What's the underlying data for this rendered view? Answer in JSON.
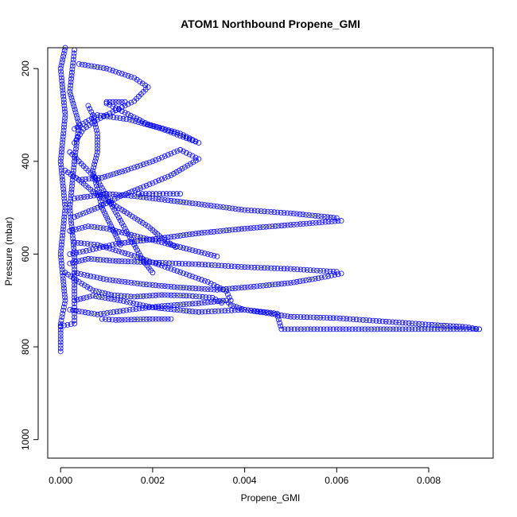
{
  "chart_data": {
    "type": "scatter",
    "title": "ATOM1 Northbound Propene_GMI",
    "xlabel": "Propene_GMI",
    "ylabel": "Pressure (mbar)",
    "xlim": [
      -0.00028,
      0.0094
    ],
    "ylim": [
      1040,
      155
    ],
    "y_reversed": true,
    "x_ticks": [
      {
        "value": 0.0,
        "label": "0.000"
      },
      {
        "value": 0.002,
        "label": "0.002"
      },
      {
        "value": 0.004,
        "label": "0.004"
      },
      {
        "value": 0.006,
        "label": "0.006"
      },
      {
        "value": 0.008,
        "label": "0.008"
      }
    ],
    "y_ticks": [
      {
        "value": 200,
        "label": "200"
      },
      {
        "value": 400,
        "label": "400"
      },
      {
        "value": 600,
        "label": "600"
      },
      {
        "value": 800,
        "label": "800"
      },
      {
        "value": 1000,
        "label": "1000"
      }
    ],
    "marker": "open-circle",
    "color": "#0000ff",
    "connected": true,
    "series": [
      {
        "points": [
          [
            0.0,
            810
          ],
          [
            0.0,
            750
          ],
          [
            0.0001,
            700
          ],
          [
            0.0,
            600
          ],
          [
            0.0001,
            500
          ],
          [
            0.0,
            400
          ],
          [
            0.0001,
            300
          ],
          [
            0.0,
            200
          ],
          [
            0.0001,
            155
          ]
        ]
      },
      {
        "points": [
          [
            0.0003,
            160
          ],
          [
            0.0002,
            250
          ],
          [
            0.0004,
            320
          ],
          [
            0.0003,
            400
          ],
          [
            0.0002,
            500
          ],
          [
            0.0003,
            600
          ],
          [
            0.0003,
            700
          ],
          [
            0.0003,
            750
          ],
          [
            0.0,
            755
          ]
        ]
      },
      {
        "points": [
          [
            0.0009,
            740
          ],
          [
            0.0012,
            742
          ],
          [
            0.0016,
            741
          ],
          [
            0.002,
            740
          ],
          [
            0.0024,
            740
          ]
        ]
      },
      {
        "points": [
          [
            0.0003,
            700
          ],
          [
            0.0007,
            690
          ],
          [
            0.0013,
            700
          ],
          [
            0.002,
            715
          ],
          [
            0.003,
            725
          ],
          [
            0.004,
            720
          ],
          [
            0.005,
            735
          ],
          [
            0.006,
            738
          ],
          [
            0.007,
            745
          ],
          [
            0.008,
            752
          ],
          [
            0.0088,
            757
          ],
          [
            0.0091,
            762
          ]
        ]
      },
      {
        "points": [
          [
            0.0002,
            720
          ],
          [
            0.0008,
            730
          ],
          [
            0.0015,
            720
          ],
          [
            0.0022,
            712
          ],
          [
            0.003,
            706
          ],
          [
            0.0036,
            700
          ],
          [
            0.0037,
            710
          ],
          [
            0.004,
            720
          ],
          [
            0.0047,
            728
          ],
          [
            0.0048,
            762
          ],
          [
            0.006,
            762
          ],
          [
            0.0075,
            762
          ],
          [
            0.0091,
            762
          ]
        ]
      },
      {
        "points": [
          [
            0.0003,
            640
          ],
          [
            0.001,
            655
          ],
          [
            0.0018,
            665
          ],
          [
            0.0026,
            672
          ],
          [
            0.0034,
            677
          ],
          [
            0.0042,
            670
          ],
          [
            0.005,
            662
          ],
          [
            0.0056,
            652
          ],
          [
            0.0061,
            642
          ]
        ]
      },
      {
        "points": [
          [
            0.0002,
            620
          ],
          [
            0.0006,
            610
          ],
          [
            0.0012,
            615
          ],
          [
            0.002,
            618
          ],
          [
            0.003,
            622
          ],
          [
            0.004,
            628
          ],
          [
            0.005,
            632
          ],
          [
            0.006,
            638
          ]
        ]
      },
      {
        "points": [
          [
            0.0002,
            600
          ],
          [
            0.0007,
            590
          ],
          [
            0.0012,
            578
          ],
          [
            0.002,
            568
          ],
          [
            0.003,
            555
          ],
          [
            0.004,
            545
          ],
          [
            0.005,
            537
          ],
          [
            0.0061,
            528
          ]
        ]
      },
      {
        "points": [
          [
            0.0003,
            480
          ],
          [
            0.001,
            470
          ],
          [
            0.0016,
            475
          ],
          [
            0.002,
            480
          ],
          [
            0.003,
            492
          ],
          [
            0.004,
            505
          ],
          [
            0.005,
            512
          ],
          [
            0.006,
            522
          ]
        ]
      },
      {
        "points": [
          [
            0.0017,
            470
          ],
          [
            0.002,
            470
          ],
          [
            0.0023,
            470
          ],
          [
            0.0026,
            470
          ]
        ]
      },
      {
        "points": [
          [
            0.0003,
            520
          ],
          [
            0.0008,
            500
          ],
          [
            0.0013,
            475
          ],
          [
            0.0018,
            455
          ],
          [
            0.0024,
            430
          ],
          [
            0.003,
            395
          ],
          [
            0.0026,
            375
          ],
          [
            0.002,
            400
          ],
          [
            0.0014,
            420
          ],
          [
            0.0009,
            435
          ],
          [
            0.0004,
            440
          ]
        ]
      },
      {
        "points": [
          [
            0.0003,
            330
          ],
          [
            0.0008,
            300
          ],
          [
            0.0015,
            310
          ],
          [
            0.0022,
            330
          ],
          [
            0.003,
            360
          ],
          [
            0.0026,
            340
          ],
          [
            0.0019,
            320
          ],
          [
            0.0014,
            295
          ],
          [
            0.001,
            275
          ]
        ]
      },
      {
        "points": [
          [
            0.001,
            272
          ],
          [
            0.0012,
            272
          ],
          [
            0.0014,
            272
          ]
        ]
      },
      {
        "points": [
          [
            0.0004,
            190
          ],
          [
            0.001,
            200
          ],
          [
            0.0016,
            220
          ],
          [
            0.0019,
            240
          ],
          [
            0.0016,
            270
          ],
          [
            0.0012,
            290
          ],
          [
            0.0008,
            310
          ],
          [
            0.0005,
            330
          ],
          [
            0.0003,
            360
          ]
        ]
      },
      {
        "points": [
          [
            0.0002,
            550
          ],
          [
            0.0006,
            540
          ],
          [
            0.001,
            545
          ],
          [
            0.0014,
            555
          ],
          [
            0.0018,
            565
          ],
          [
            0.0022,
            575
          ],
          [
            0.0026,
            585
          ],
          [
            0.003,
            595
          ],
          [
            0.0034,
            605
          ]
        ]
      },
      {
        "points": [
          [
            0.0003,
            575
          ],
          [
            0.0008,
            580
          ],
          [
            0.0012,
            592
          ],
          [
            0.0016,
            604
          ],
          [
            0.002,
            618
          ],
          [
            0.0024,
            632
          ],
          [
            0.0028,
            646
          ],
          [
            0.0032,
            660
          ],
          [
            0.0036,
            680
          ],
          [
            0.0037,
            700
          ]
        ]
      },
      {
        "points": [
          [
            0.0001,
            420
          ],
          [
            0.0004,
            440
          ],
          [
            0.0007,
            465
          ],
          [
            0.0011,
            490
          ],
          [
            0.0015,
            515
          ],
          [
            0.0019,
            540
          ],
          [
            0.0022,
            565
          ],
          [
            0.0025,
            585
          ]
        ]
      },
      {
        "points": [
          [
            0.0002,
            380
          ],
          [
            0.0005,
            410
          ],
          [
            0.0008,
            440
          ],
          [
            0.001,
            475
          ],
          [
            0.0012,
            510
          ],
          [
            0.0014,
            545
          ],
          [
            0.0016,
            580
          ],
          [
            0.0018,
            615
          ],
          [
            0.002,
            640
          ]
        ]
      },
      {
        "points": [
          [
            0.0006,
            280
          ],
          [
            0.0007,
            300
          ],
          [
            0.0008,
            340
          ],
          [
            0.0008,
            380
          ],
          [
            0.0007,
            420
          ],
          [
            0.0008,
            460
          ],
          [
            0.0009,
            500
          ],
          [
            0.0011,
            540
          ],
          [
            0.0013,
            580
          ]
        ]
      },
      {
        "points": [
          [
            0.0001,
            640
          ],
          [
            0.0004,
            660
          ],
          [
            0.0007,
            678
          ],
          [
            0.0011,
            688
          ],
          [
            0.0016,
            692
          ],
          [
            0.0022,
            688
          ],
          [
            0.0028,
            690
          ],
          [
            0.0033,
            694
          ],
          [
            0.0035,
            705
          ]
        ]
      }
    ]
  }
}
